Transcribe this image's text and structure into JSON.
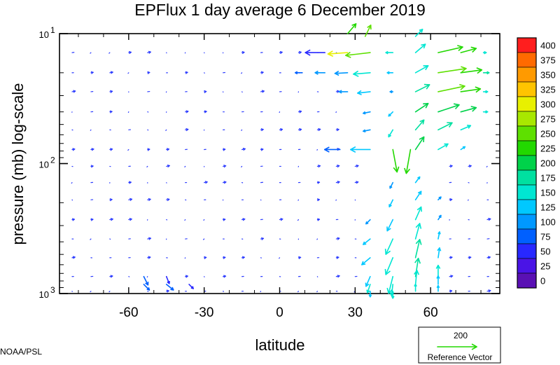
{
  "chart_data": {
    "type": "vector-field",
    "title": "EPFlux  1 day average  6 December 2019",
    "xlabel": "latitude",
    "ylabel": "pressure (mb)  log-scale",
    "x_ticks": [
      -60,
      -30,
      0,
      30,
      60
    ],
    "x_tick_labels": [
      "-60",
      "-30",
      "0",
      "30",
      "60"
    ],
    "xlim": [
      -87.5,
      87.5
    ],
    "y_scale": "log",
    "y_ticks": [
      10,
      100,
      1000
    ],
    "y_tick_labels": [
      {
        "base": "10",
        "exp": "1"
      },
      {
        "base": "10",
        "exp": "2"
      },
      {
        "base": "10",
        "exp": "3"
      }
    ],
    "ylim": [
      1000,
      10
    ],
    "colorbar": {
      "levels": [
        "400",
        "375",
        "350",
        "325",
        "300",
        "275",
        "250",
        "225",
        "200",
        "175",
        "150",
        "125",
        "100",
        "75",
        "50",
        "25",
        "0"
      ],
      "colors": [
        "#ff1e1e",
        "#ff6a00",
        "#ff9a00",
        "#ffc400",
        "#e8f000",
        "#a8e800",
        "#5ee000",
        "#22d800",
        "#00d24a",
        "#00e0a0",
        "#00e6d2",
        "#00c8ff",
        "#0098ff",
        "#0060ff",
        "#2828ff",
        "#4a14e6",
        "#5a10b4"
      ]
    },
    "reference_vector": {
      "value": "200",
      "label": "Reference Vector",
      "color": "#22d800"
    },
    "credit": "NOAA/PSL",
    "vectors": [
      {
        "lat": 27,
        "p": 10,
        "u": 12,
        "v": -14,
        "mag": 230
      },
      {
        "lat": 34,
        "p": 10.5,
        "u": 8,
        "v": -16,
        "mag": 260
      },
      {
        "lat": 54,
        "p": 10.5,
        "u": 10,
        "v": -10,
        "mag": 150
      },
      {
        "lat": 18,
        "p": 14,
        "u": -28,
        "v": 0,
        "mag": 60
      },
      {
        "lat": 27,
        "p": 14,
        "u": -28,
        "v": 2,
        "mag": 300
      },
      {
        "lat": 36,
        "p": 14,
        "u": -35,
        "v": 4,
        "mag": 270
      },
      {
        "lat": 45,
        "p": 14,
        "u": -10,
        "v": 0,
        "mag": 160
      },
      {
        "lat": 54,
        "p": 14,
        "u": 14,
        "v": -12,
        "mag": 160
      },
      {
        "lat": 63,
        "p": 14,
        "u": 35,
        "v": -8,
        "mag": 240
      },
      {
        "lat": 72,
        "p": 14,
        "u": 22,
        "v": -6,
        "mag": 230
      },
      {
        "lat": 81,
        "p": 14,
        "u": 4,
        "v": 0,
        "mag": 150
      },
      {
        "lat": 9,
        "p": 20,
        "u": -10,
        "v": 0,
        "mag": 90
      },
      {
        "lat": 18,
        "p": 20,
        "u": -14,
        "v": 0,
        "mag": 100
      },
      {
        "lat": 27,
        "p": 20,
        "u": -18,
        "v": 1,
        "mag": 110
      },
      {
        "lat": 36,
        "p": 20,
        "u": -24,
        "v": 2,
        "mag": 150
      },
      {
        "lat": 45,
        "p": 20,
        "u": -8,
        "v": 0,
        "mag": 130
      },
      {
        "lat": 54,
        "p": 20,
        "u": 18,
        "v": -10,
        "mag": 170
      },
      {
        "lat": 63,
        "p": 20,
        "u": 40,
        "v": -6,
        "mag": 250
      },
      {
        "lat": 72,
        "p": 20,
        "u": 30,
        "v": -4,
        "mag": 240
      },
      {
        "lat": 81,
        "p": 20,
        "u": 8,
        "v": 0,
        "mag": 180
      },
      {
        "lat": 27,
        "p": 28,
        "u": -12,
        "v": 0,
        "mag": 100
      },
      {
        "lat": 36,
        "p": 28,
        "u": -18,
        "v": 2,
        "mag": 130
      },
      {
        "lat": 45,
        "p": 28,
        "u": -4,
        "v": 0,
        "mag": 120
      },
      {
        "lat": 54,
        "p": 28,
        "u": 20,
        "v": -10,
        "mag": 180
      },
      {
        "lat": 63,
        "p": 28,
        "u": 38,
        "v": -8,
        "mag": 260
      },
      {
        "lat": 72,
        "p": 28,
        "u": 28,
        "v": -4,
        "mag": 230
      },
      {
        "lat": 81,
        "p": 28,
        "u": 6,
        "v": 0,
        "mag": 170
      },
      {
        "lat": 36,
        "p": 40,
        "u": -10,
        "v": 2,
        "mag": 110
      },
      {
        "lat": 45,
        "p": 40,
        "u": -6,
        "v": 6,
        "mag": 140
      },
      {
        "lat": 54,
        "p": 40,
        "u": 18,
        "v": -12,
        "mag": 200
      },
      {
        "lat": 63,
        "p": 40,
        "u": 30,
        "v": -10,
        "mag": 220
      },
      {
        "lat": 72,
        "p": 40,
        "u": 22,
        "v": -6,
        "mag": 210
      },
      {
        "lat": 81,
        "p": 40,
        "u": 6,
        "v": 0,
        "mag": 150
      },
      {
        "lat": 36,
        "p": 55,
        "u": -10,
        "v": 2,
        "mag": 110
      },
      {
        "lat": 45,
        "p": 55,
        "u": -6,
        "v": 10,
        "mag": 150
      },
      {
        "lat": 54,
        "p": 55,
        "u": 12,
        "v": -14,
        "mag": 190
      },
      {
        "lat": 63,
        "p": 55,
        "u": 20,
        "v": -10,
        "mag": 190
      },
      {
        "lat": 72,
        "p": 55,
        "u": 14,
        "v": -6,
        "mag": 170
      },
      {
        "lat": 24,
        "p": 78,
        "u": -22,
        "v": 0,
        "mag": 80
      },
      {
        "lat": 36,
        "p": 78,
        "u": -28,
        "v": 0,
        "mag": 140
      },
      {
        "lat": 45,
        "p": 78,
        "u": 6,
        "v": 32,
        "mag": 230
      },
      {
        "lat": 52,
        "p": 78,
        "u": -6,
        "v": 34,
        "mag": 230
      },
      {
        "lat": 54,
        "p": 78,
        "u": 12,
        "v": -18,
        "mag": 210
      },
      {
        "lat": 63,
        "p": 78,
        "u": 14,
        "v": -8,
        "mag": 160
      },
      {
        "lat": 72,
        "p": 78,
        "u": 6,
        "v": -4,
        "mag": 130
      },
      {
        "lat": 45,
        "p": 140,
        "u": -4,
        "v": 8,
        "mag": 120
      },
      {
        "lat": 54,
        "p": 140,
        "u": 6,
        "v": -8,
        "mag": 130
      },
      {
        "lat": 45,
        "p": 190,
        "u": -5,
        "v": 10,
        "mag": 130
      },
      {
        "lat": 54,
        "p": 190,
        "u": 8,
        "v": -12,
        "mag": 140
      },
      {
        "lat": 63,
        "p": 190,
        "u": 4,
        "v": -4,
        "mag": 110
      },
      {
        "lat": 36,
        "p": 270,
        "u": -6,
        "v": 6,
        "mag": 110
      },
      {
        "lat": 45,
        "p": 270,
        "u": -8,
        "v": 16,
        "mag": 140
      },
      {
        "lat": 54,
        "p": 270,
        "u": 8,
        "v": -18,
        "mag": 150
      },
      {
        "lat": 63,
        "p": 270,
        "u": 4,
        "v": -6,
        "mag": 120
      },
      {
        "lat": 36,
        "p": 380,
        "u": -10,
        "v": 8,
        "mag": 130
      },
      {
        "lat": 45,
        "p": 380,
        "u": -10,
        "v": 22,
        "mag": 160
      },
      {
        "lat": 54,
        "p": 380,
        "u": 6,
        "v": -22,
        "mag": 160
      },
      {
        "lat": 63,
        "p": 380,
        "u": 2,
        "v": -10,
        "mag": 130
      },
      {
        "lat": 36,
        "p": 530,
        "u": -12,
        "v": 10,
        "mag": 140
      },
      {
        "lat": 45,
        "p": 530,
        "u": -10,
        "v": 24,
        "mag": 170
      },
      {
        "lat": 54,
        "p": 530,
        "u": 6,
        "v": -26,
        "mag": 180
      },
      {
        "lat": 63,
        "p": 530,
        "u": 2,
        "v": -14,
        "mag": 140
      },
      {
        "lat": -54,
        "p": 740,
        "u": 6,
        "v": 12,
        "mag": 80
      },
      {
        "lat": -45,
        "p": 740,
        "u": 4,
        "v": 10,
        "mag": 70
      },
      {
        "lat": 36,
        "p": 740,
        "u": -6,
        "v": 14,
        "mag": 140
      },
      {
        "lat": 45,
        "p": 740,
        "u": -6,
        "v": 24,
        "mag": 170
      },
      {
        "lat": 54,
        "p": 740,
        "u": 4,
        "v": -26,
        "mag": 180
      },
      {
        "lat": 63,
        "p": 740,
        "u": 0,
        "v": -16,
        "mag": 150
      },
      {
        "lat": -54,
        "p": 850,
        "u": 8,
        "v": 8,
        "mag": 80
      },
      {
        "lat": -45,
        "p": 850,
        "u": 10,
        "v": 8,
        "mag": 80
      },
      {
        "lat": -36,
        "p": 850,
        "u": 6,
        "v": 6,
        "mag": 70
      },
      {
        "lat": 36,
        "p": 850,
        "u": -4,
        "v": 12,
        "mag": 150
      },
      {
        "lat": 45,
        "p": 850,
        "u": -2,
        "v": 16,
        "mag": 160
      },
      {
        "lat": 54,
        "p": 850,
        "u": 2,
        "v": -20,
        "mag": 170
      },
      {
        "lat": 63,
        "p": 850,
        "u": 0,
        "v": -12,
        "mag": 140
      },
      {
        "lat": 36,
        "p": 960,
        "u": 0,
        "v": 8,
        "mag": 140
      },
      {
        "lat": 45,
        "p": 960,
        "u": 0,
        "v": 10,
        "mag": 150
      },
      {
        "lat": 54,
        "p": 960,
        "u": 0,
        "v": -10,
        "mag": 150
      },
      {
        "lat": 63,
        "p": 960,
        "u": 0,
        "v": -8,
        "mag": 140
      }
    ]
  }
}
